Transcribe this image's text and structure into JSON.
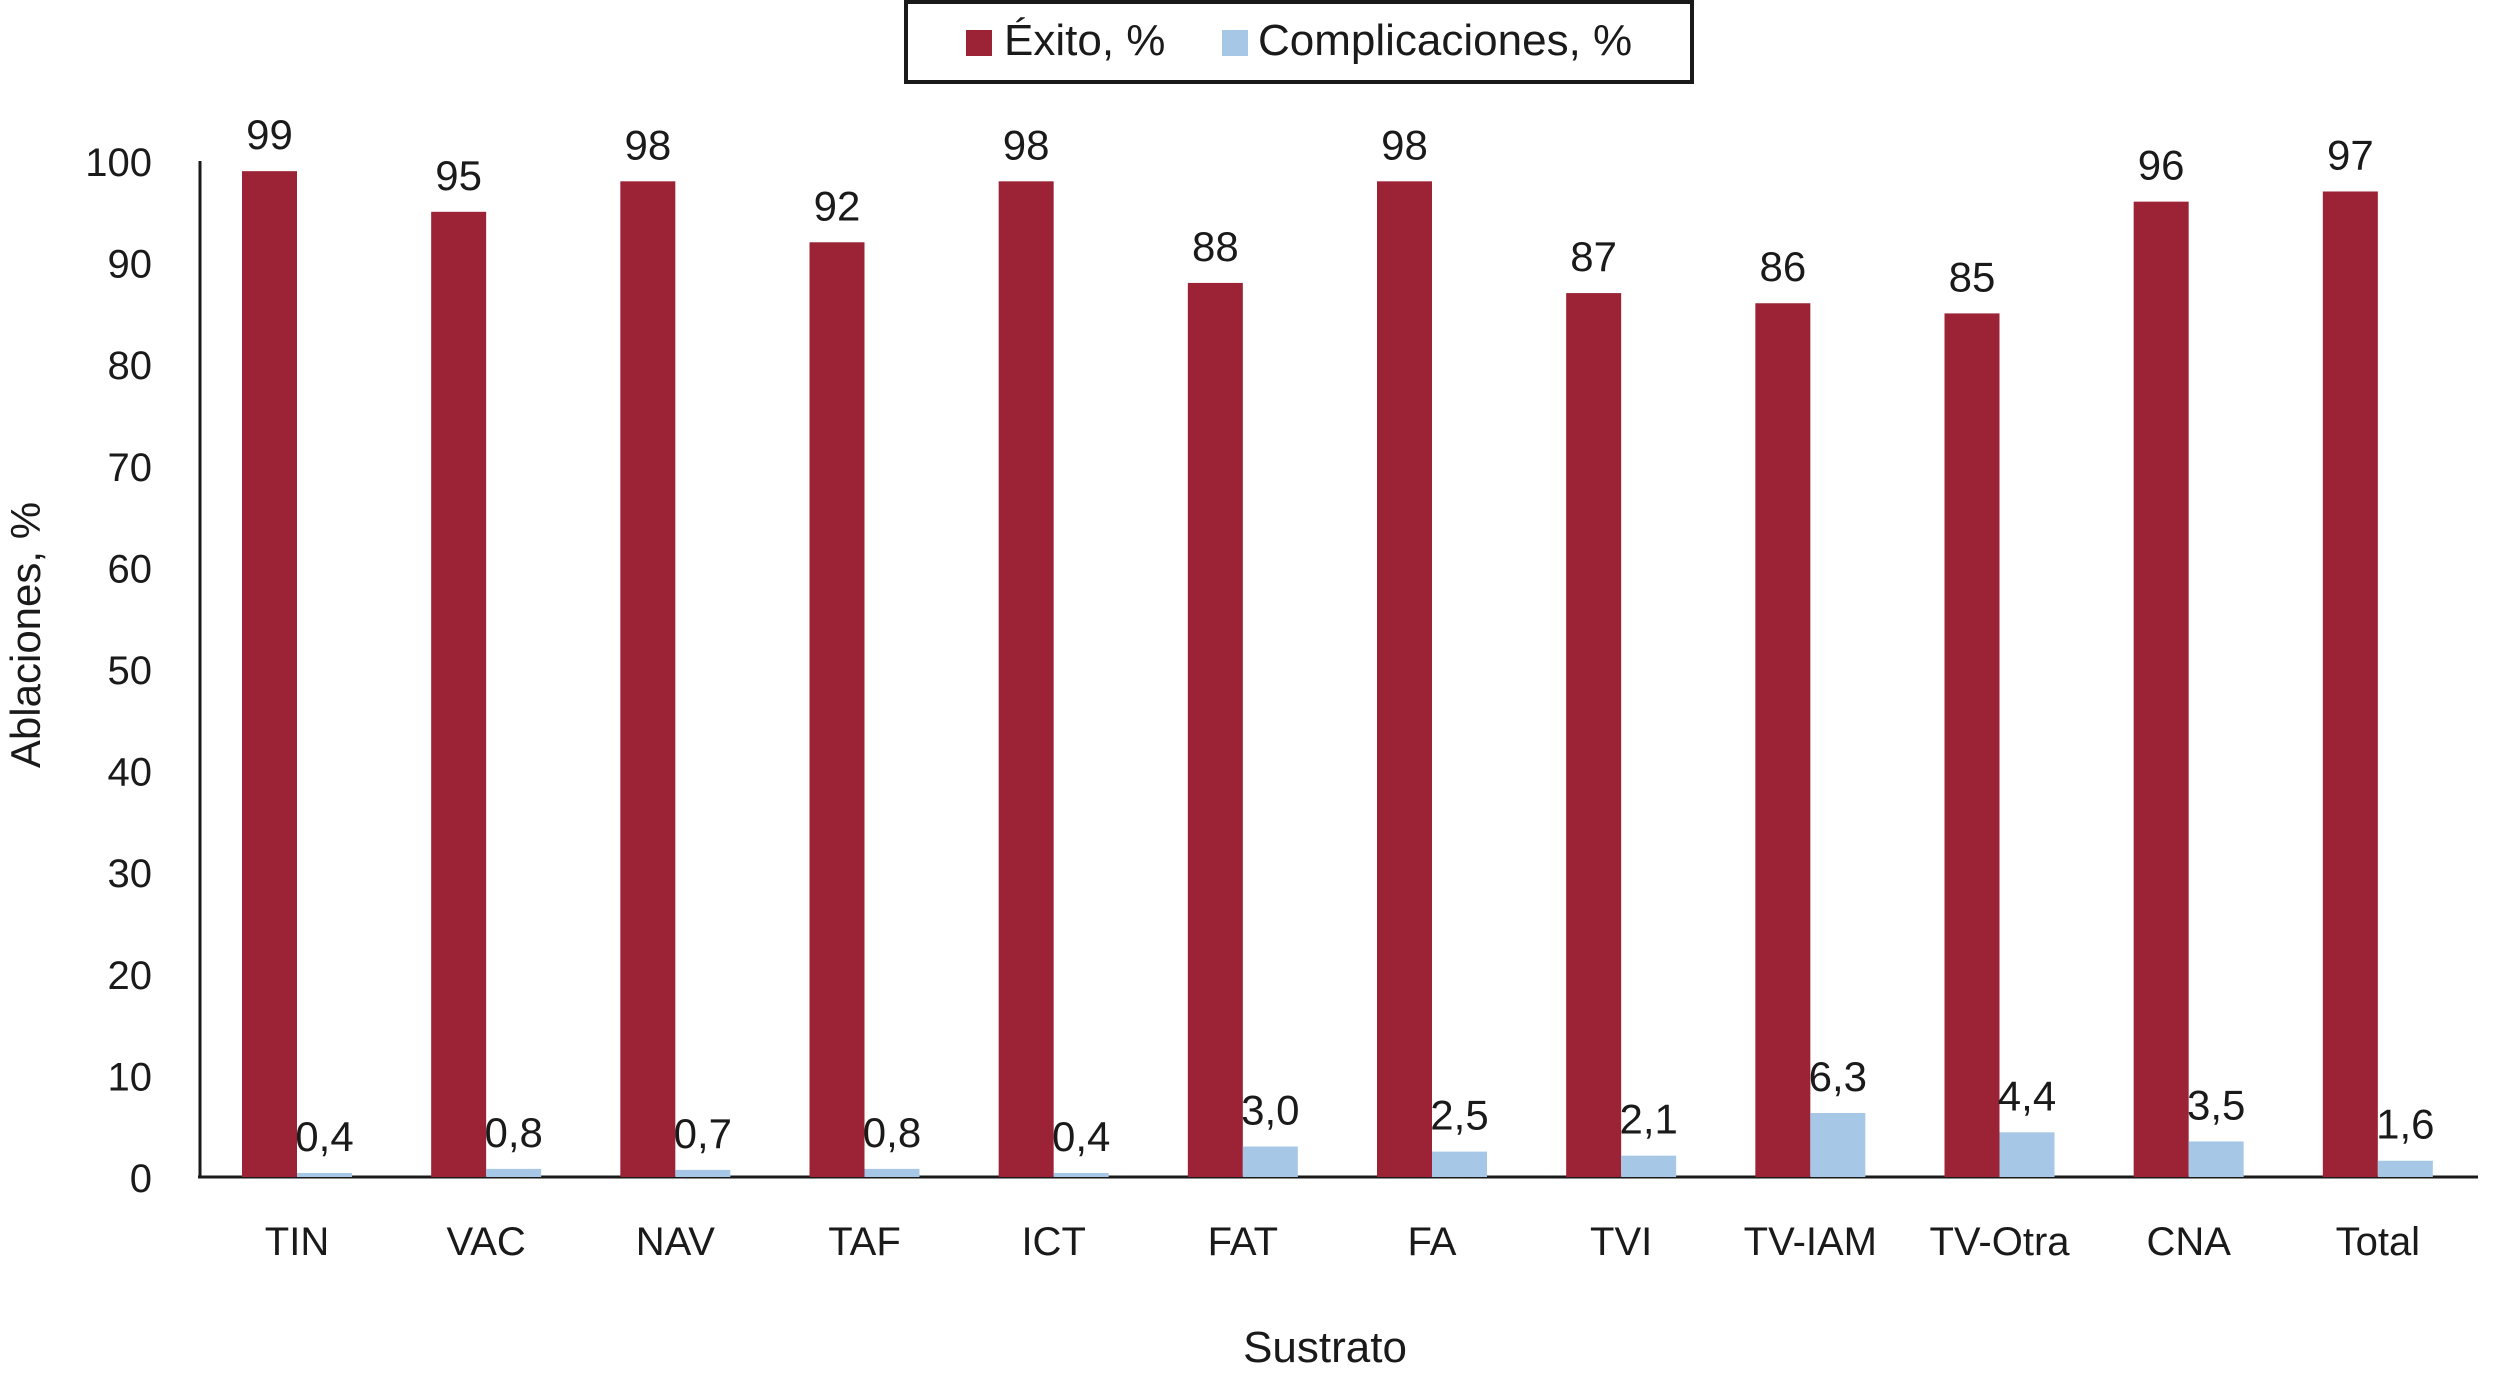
{
  "chart_data": {
    "type": "bar",
    "title": "",
    "xlabel": "Sustrato",
    "ylabel": "Ablaciones, %",
    "ylim": [
      0,
      100
    ],
    "yticks": [
      "0",
      "10",
      "20",
      "30",
      "40",
      "50",
      "60",
      "70",
      "80",
      "90",
      "100"
    ],
    "grid": false,
    "legend_position": "top-center",
    "categories": [
      "TIN",
      "VAC",
      "NAV",
      "TAF",
      "ICT",
      "FAT",
      "FA",
      "TVI",
      "TV-IAM",
      "TV-Otra",
      "CNA",
      "Total"
    ],
    "series": [
      {
        "name": "Éxito, %",
        "color": "#9b2335",
        "values": [
          99,
          95,
          98,
          92,
          98,
          88,
          98,
          87,
          86,
          85,
          96,
          97
        ],
        "labels": [
          "99",
          "95",
          "98",
          "92",
          "98",
          "88",
          "98",
          "87",
          "86",
          "85",
          "96",
          "97"
        ]
      },
      {
        "name": "Complicaciones, %",
        "color": "#a6c8e6",
        "values": [
          0.4,
          0.8,
          0.7,
          0.8,
          0.4,
          3.0,
          2.5,
          2.1,
          6.3,
          4.4,
          3.5,
          1.6
        ],
        "labels": [
          "0,4",
          "0,8",
          "0,7",
          "0,8",
          "0,4",
          "3,0",
          "2,5",
          "2,1",
          "6,3",
          "4,4",
          "3,5",
          "1,6"
        ]
      }
    ]
  }
}
